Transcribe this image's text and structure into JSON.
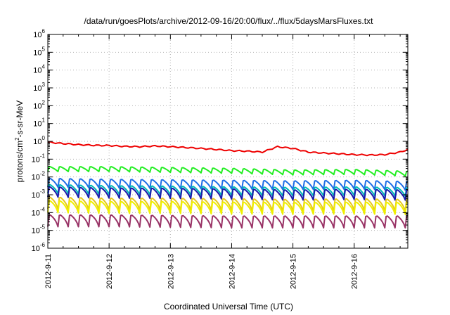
{
  "chart_data": {
    "type": "line",
    "title": "/data/run/goesPlots/archive/2012-09-16/20:00/flux/../flux/5daysMarsFluxes.txt",
    "xlabel": "Coordinated Universal Time (UTC)",
    "ylabel_main": "protons/cm",
    "ylabel_sup": "2",
    "ylabel_rest": "-s-sr-MeV",
    "x_ticks": [
      "2012-9-11",
      "2012-9-12",
      "2012-9-13",
      "2012-9-14",
      "2012-9-15",
      "2012-9-16"
    ],
    "xlim": [
      "2012-9-11",
      "2012-9-16T21:00"
    ],
    "y_scale": "log",
    "y_ticks": [
      {
        "base": "10",
        "exp": "6"
      },
      {
        "base": "10",
        "exp": "5"
      },
      {
        "base": "10",
        "exp": "4"
      },
      {
        "base": "10",
        "exp": "3"
      },
      {
        "base": "10",
        "exp": "2"
      },
      {
        "base": "10",
        "exp": "1"
      },
      {
        "base": "10",
        "exp": "0"
      },
      {
        "base": "10",
        "exp": "-1"
      },
      {
        "base": "10",
        "exp": "-2"
      },
      {
        "base": "10",
        "exp": "-3"
      },
      {
        "base": "10",
        "exp": "-4"
      },
      {
        "base": "10",
        "exp": "-5"
      },
      {
        "base": "10",
        "exp": "-6"
      }
    ],
    "ylim": [
      1e-06,
      1000000.0
    ],
    "grid": true,
    "series": [
      {
        "color": "#ee0000",
        "x": [
          "2012-9-11T00:00",
          "2012-9-11T06:00",
          "2012-9-11T12:00",
          "2012-9-11T18:00",
          "2012-9-12T00:00",
          "2012-9-12T06:00",
          "2012-9-12T12:00",
          "2012-9-12T18:00",
          "2012-9-13T00:00",
          "2012-9-13T06:00",
          "2012-9-13T12:00",
          "2012-9-13T18:00",
          "2012-9-14T00:00",
          "2012-9-14T06:00",
          "2012-9-14T12:00",
          "2012-9-14T18:00",
          "2012-9-15T00:00",
          "2012-9-15T06:00",
          "2012-9-15T12:00",
          "2012-9-15T18:00",
          "2012-9-16T00:00",
          "2012-9-16T06:00",
          "2012-9-16T12:00",
          "2012-9-16T18:00",
          "2012-9-16T21:00"
        ],
        "y": [
          0.9,
          0.75,
          0.65,
          0.6,
          0.58,
          0.52,
          0.5,
          0.55,
          0.5,
          0.45,
          0.4,
          0.35,
          0.3,
          0.28,
          0.25,
          0.5,
          0.4,
          0.25,
          0.22,
          0.2,
          0.18,
          0.17,
          0.18,
          0.25,
          0.35
        ]
      },
      {
        "color": "#22ee22",
        "x": [
          "2012-9-11T00:00",
          "2012-9-12T00:00",
          "2012-9-13T00:00",
          "2012-9-14T00:00",
          "2012-9-15T00:00",
          "2012-9-16T00:00",
          "2012-9-16T21:00"
        ],
        "y": [
          0.04,
          0.04,
          0.036,
          0.032,
          0.026,
          0.028,
          0.022
        ],
        "oscillation": {
          "period_hours": 4,
          "dip_factor": 0.5
        }
      },
      {
        "color": "#1e6ee6",
        "x": [
          "2012-9-11T00:00",
          "2012-9-12T00:00",
          "2012-9-13T00:00",
          "2012-9-14T00:00",
          "2012-9-15T00:00",
          "2012-9-16T00:00",
          "2012-9-16T21:00"
        ],
        "y": [
          0.009,
          0.008,
          0.0075,
          0.007,
          0.0065,
          0.007,
          0.006
        ],
        "oscillation": {
          "period_hours": 4,
          "dip_factor": 0.3
        }
      },
      {
        "color": "#00b7b7",
        "x": [
          "2012-9-11T00:00",
          "2012-9-12T00:00",
          "2012-9-13T00:00",
          "2012-9-14T00:00",
          "2012-9-15T00:00",
          "2012-9-16T00:00",
          "2012-9-16T21:00"
        ],
        "y": [
          0.004,
          0.0035,
          0.0033,
          0.003,
          0.0028,
          0.003,
          0.0027
        ],
        "oscillation": {
          "period_hours": 4,
          "dip_factor": 0.3
        }
      },
      {
        "color": "#1a1aaa",
        "x": [
          "2012-9-11T00:00",
          "2012-9-12T00:00",
          "2012-9-13T00:00",
          "2012-9-14T00:00",
          "2012-9-15T00:00",
          "2012-9-16T00:00",
          "2012-9-16T21:00"
        ],
        "y": [
          0.003,
          0.0026,
          0.0025,
          0.0023,
          0.002,
          0.0022,
          0.002
        ],
        "oscillation": {
          "period_hours": 4,
          "dip_factor": 0.25
        }
      },
      {
        "color": "#e6c81e",
        "x": [
          "2012-9-11T00:00",
          "2012-9-12T00:00",
          "2012-9-13T00:00",
          "2012-9-14T00:00",
          "2012-9-15T00:00",
          "2012-9-16T00:00",
          "2012-9-16T21:00"
        ],
        "y": [
          0.0008,
          0.0007,
          0.0007,
          0.00065,
          0.0006,
          0.00065,
          0.0006
        ],
        "oscillation": {
          "period_hours": 4,
          "dip_factor": 0.2
        }
      },
      {
        "color": "#f0f000",
        "x": [
          "2012-9-11T00:00",
          "2012-9-12T00:00",
          "2012-9-13T00:00",
          "2012-9-14T00:00",
          "2012-9-15T00:00",
          "2012-9-16T00:00",
          "2012-9-16T21:00"
        ],
        "y": [
          0.0005,
          0.00045,
          0.00045,
          0.00042,
          0.0004,
          0.00042,
          0.0004
        ],
        "oscillation": {
          "period_hours": 4,
          "dip_factor": 0.2
        }
      },
      {
        "color": "#993366",
        "x": [
          "2012-9-11T00:00",
          "2012-9-12T00:00",
          "2012-9-13T00:00",
          "2012-9-14T00:00",
          "2012-9-15T00:00",
          "2012-9-16T00:00",
          "2012-9-16T21:00"
        ],
        "y": [
          8e-05,
          8e-05,
          7.5e-05,
          7e-05,
          7e-05,
          7e-05,
          7e-05
        ],
        "oscillation": {
          "period_hours": 4,
          "dip_factor": 0.2
        }
      }
    ]
  }
}
